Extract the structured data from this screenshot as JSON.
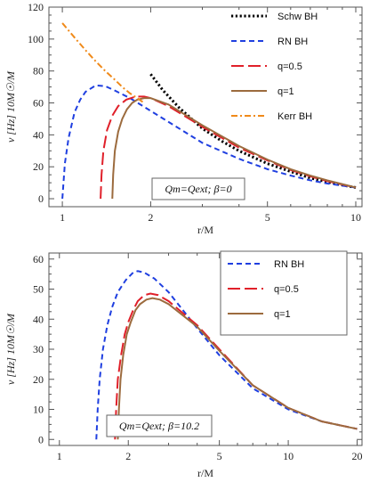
{
  "chart_data": [
    {
      "type": "line",
      "title": "",
      "xlabel": "r/M",
      "ylabel": "ν [Hz] 10M☉/M",
      "xscale": "log",
      "xlim": [
        0.9,
        10.5
      ],
      "ylim": [
        -5,
        120
      ],
      "xticks": [
        1,
        2,
        5,
        10
      ],
      "yticks": [
        0,
        20,
        40,
        60,
        80,
        100,
        120
      ],
      "grid": false,
      "legend": "top-right",
      "annotation": "Qm=Qext; β=0",
      "series": [
        {
          "name": "Schw BH",
          "color": "#000000",
          "dash": "dotted",
          "x": [
            2.0,
            2.2,
            2.5,
            3.0,
            3.5,
            4.0,
            5.0,
            6.0,
            7.0,
            8.0,
            9.0,
            10.0
          ],
          "y": [
            78,
            68,
            57,
            44,
            36,
            30,
            22,
            17,
            13,
            10.5,
            8.5,
            7
          ]
        },
        {
          "name": "RN BH",
          "color": "#1f3fe0",
          "dash": "dashed",
          "x": [
            1.0,
            1.02,
            1.05,
            1.1,
            1.15,
            1.2,
            1.3,
            1.4,
            1.5,
            1.7,
            2.0,
            2.5,
            3.0,
            4.0,
            5.0,
            6.0,
            7.0,
            8.0,
            10.0
          ],
          "y": [
            0,
            22,
            38,
            54,
            62,
            67,
            71,
            70.5,
            68,
            63,
            55,
            44,
            35,
            25,
            18.5,
            14.5,
            11.5,
            9.5,
            7
          ]
        },
        {
          "name": "q=0.5",
          "color": "#e0202a",
          "dash": "longdash",
          "x": [
            1.35,
            1.36,
            1.38,
            1.42,
            1.48,
            1.55,
            1.65,
            1.78,
            1.9,
            2.0,
            2.3,
            2.6,
            3.0,
            4.0,
            5.0,
            6.0,
            7.0,
            8.0,
            10.0
          ],
          "y": [
            0,
            15,
            30,
            43,
            52,
            58,
            62,
            64,
            64,
            63,
            58,
            52,
            45,
            32,
            24,
            18,
            14,
            11,
            7
          ]
        },
        {
          "name": "q=1",
          "color": "#9c6b3e",
          "dash": "solid",
          "x": [
            1.48,
            1.49,
            1.51,
            1.55,
            1.6,
            1.66,
            1.73,
            1.8,
            1.9,
            2.0,
            2.3,
            2.6,
            3.0,
            4.0,
            5.0,
            6.0,
            7.0,
            8.0,
            10.0
          ],
          "y": [
            0,
            15,
            30,
            42,
            50,
            56,
            60,
            62,
            63,
            63,
            59,
            53,
            46,
            33,
            24.5,
            18.5,
            14.5,
            11.5,
            7
          ]
        },
        {
          "name": "Kerr BH",
          "color": "#f08a1a",
          "dash": "dashdot",
          "x": [
            1.0,
            1.1,
            1.2,
            1.3,
            1.4,
            1.5,
            1.6,
            1.7,
            1.8,
            1.9
          ],
          "y": [
            110,
            101,
            93,
            86,
            80,
            75,
            70,
            66,
            63,
            60
          ]
        }
      ]
    },
    {
      "type": "line",
      "title": "",
      "xlabel": "r/M",
      "ylabel": "ν [Hz] 10M☉/M",
      "xscale": "log",
      "xlim": [
        0.9,
        21
      ],
      "ylim": [
        -2,
        62
      ],
      "xticks": [
        1,
        2,
        5,
        10,
        20
      ],
      "yticks": [
        0,
        10,
        20,
        30,
        40,
        50,
        60
      ],
      "grid": false,
      "legend": "top-right",
      "annotation": "Qm=Qext; β=10.2",
      "series": [
        {
          "name": "RN BH",
          "color": "#1f3fe0",
          "dash": "dashed",
          "x": [
            1.45,
            1.47,
            1.5,
            1.55,
            1.62,
            1.7,
            1.8,
            1.95,
            2.1,
            2.2,
            2.35,
            2.6,
            3.0,
            4.0,
            5.0,
            7.0,
            10.0,
            14.0,
            20.0
          ],
          "y": [
            0,
            10,
            20,
            30,
            38,
            44,
            49,
            53,
            55.5,
            56,
            55.5,
            53.5,
            49,
            37,
            28,
            17,
            10,
            6,
            3.5
          ]
        },
        {
          "name": "q=0.5",
          "color": "#e0202a",
          "dash": "longdash",
          "x": [
            1.75,
            1.77,
            1.8,
            1.86,
            1.93,
            2.0,
            2.1,
            2.2,
            2.35,
            2.5,
            2.7,
            3.0,
            4.0,
            5.0,
            7.0,
            10.0,
            14.0,
            20.0
          ],
          "y": [
            0,
            10,
            20,
            28,
            35,
            39,
            43,
            46,
            48,
            48.5,
            48,
            46,
            38,
            30,
            18,
            10.5,
            6,
            3.5
          ]
        },
        {
          "name": "q=1",
          "color": "#9c6b3e",
          "dash": "solid",
          "x": [
            1.8,
            1.82,
            1.85,
            1.9,
            1.97,
            2.05,
            2.15,
            2.25,
            2.4,
            2.55,
            2.75,
            3.0,
            4.0,
            5.0,
            7.0,
            10.0,
            14.0,
            20.0
          ],
          "y": [
            0,
            10,
            20,
            28,
            35,
            39,
            43,
            45,
            46.5,
            47,
            46.5,
            45,
            37.5,
            29.5,
            18,
            10.5,
            6,
            3.5
          ]
        }
      ]
    }
  ]
}
